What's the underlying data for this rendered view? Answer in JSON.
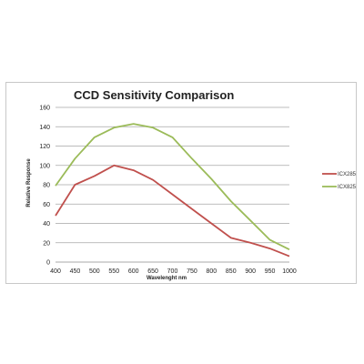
{
  "chart_data": {
    "type": "line",
    "title": "CCD Sensitivity Comparison",
    "xlabel": "Wavelenght nm",
    "ylabel": "Relative Response",
    "x": [
      400,
      450,
      500,
      550,
      600,
      650,
      700,
      750,
      800,
      850,
      900,
      950,
      1000
    ],
    "ylim": [
      0,
      160
    ],
    "yticks": [
      0,
      20,
      40,
      60,
      80,
      100,
      120,
      140,
      160
    ],
    "grid": true,
    "legend_position": "right",
    "series": [
      {
        "name": "ICX285",
        "color": "#c0504d",
        "values": [
          48,
          80,
          89,
          100,
          95,
          85,
          70,
          55,
          40,
          25,
          20,
          14,
          6
        ]
      },
      {
        "name": "ICX825",
        "color": "#9bbb59",
        "values": [
          79,
          107,
          129,
          139,
          143,
          139,
          129,
          107,
          86,
          63,
          43,
          23,
          13
        ]
      }
    ]
  }
}
